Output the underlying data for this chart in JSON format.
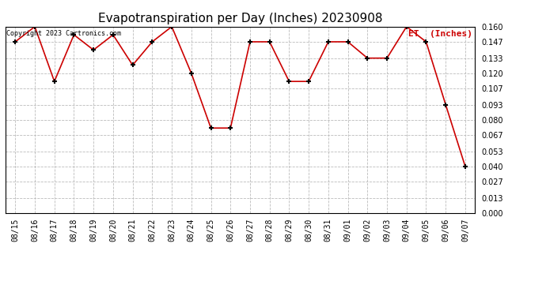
{
  "title": "Evapotranspiration per Day (Inches) 20230908",
  "legend_label": "ET  (Inches)",
  "copyright_text": "Copyright 2023 Cartronics.com",
  "dates": [
    "08/15",
    "08/16",
    "08/17",
    "08/18",
    "08/19",
    "08/20",
    "08/21",
    "08/22",
    "08/23",
    "08/24",
    "08/25",
    "08/26",
    "08/27",
    "08/28",
    "08/29",
    "08/30",
    "08/31",
    "09/01",
    "09/02",
    "09/03",
    "09/04",
    "09/05",
    "09/06",
    "09/07"
  ],
  "values": [
    0.147,
    0.16,
    0.113,
    0.153,
    0.14,
    0.153,
    0.127,
    0.147,
    0.16,
    0.12,
    0.073,
    0.073,
    0.147,
    0.147,
    0.113,
    0.113,
    0.147,
    0.147,
    0.133,
    0.133,
    0.16,
    0.147,
    0.093,
    0.04
  ],
  "line_color": "#cc0000",
  "marker_color": "#000000",
  "bg_color": "#ffffff",
  "grid_color": "#bbbbbb",
  "ylim": [
    0.0,
    0.16
  ],
  "yticks": [
    0.0,
    0.013,
    0.027,
    0.04,
    0.053,
    0.067,
    0.08,
    0.093,
    0.107,
    0.12,
    0.133,
    0.147,
    0.16
  ],
  "legend_color": "#cc0000",
  "title_fontsize": 11,
  "tick_fontsize": 7,
  "ytick_fontsize": 7
}
